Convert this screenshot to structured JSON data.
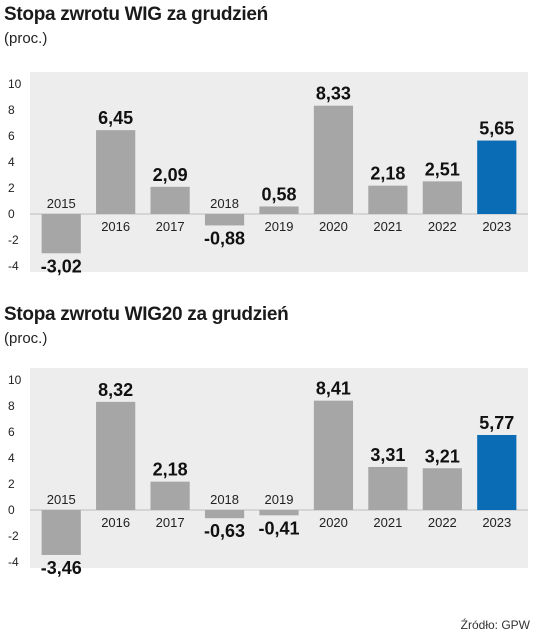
{
  "source": "Źródło: GPW",
  "chart_data": [
    {
      "type": "bar",
      "title": "Stopa zwrotu WIG za grudzień",
      "subtitle": "(proc.)",
      "categories": [
        "2015",
        "2016",
        "2017",
        "2018",
        "2019",
        "2020",
        "2021",
        "2022",
        "2023"
      ],
      "values": [
        -3.02,
        6.45,
        2.09,
        -0.88,
        0.58,
        8.33,
        2.18,
        2.51,
        5.65
      ],
      "value_labels": [
        "-3,02",
        "6,45",
        "2,09",
        "-0,88",
        "0,58",
        "8,33",
        "2,18",
        "2,51",
        "5,65"
      ],
      "ylim": [
        -4,
        10
      ],
      "yticks": [
        10,
        8,
        6,
        4,
        2,
        0,
        -2,
        -4
      ],
      "ytick_labels": [
        "10",
        "8",
        "6",
        "4",
        "2",
        "0",
        "-2",
        "-4"
      ],
      "colors": {
        "default": "#a6a6a6",
        "highlight": "#0a6cb5",
        "background": "#ededed"
      },
      "highlight_index": 8
    },
    {
      "type": "bar",
      "title": "Stopa zwrotu WIG20 za grudzień",
      "subtitle": "(proc.)",
      "categories": [
        "2015",
        "2016",
        "2017",
        "2018",
        "2019",
        "2020",
        "2021",
        "2022",
        "2023"
      ],
      "values": [
        -3.46,
        8.32,
        2.18,
        -0.63,
        -0.41,
        8.41,
        3.31,
        3.21,
        5.77
      ],
      "value_labels": [
        "-3,46",
        "8,32",
        "2,18",
        "-0,63",
        "-0,41",
        "8,41",
        "3,31",
        "3,21",
        "5,77"
      ],
      "ylim": [
        -4,
        10
      ],
      "yticks": [
        10,
        8,
        6,
        4,
        2,
        0,
        -2,
        -4
      ],
      "ytick_labels": [
        "10",
        "8",
        "6",
        "4",
        "2",
        "0",
        "-2",
        "-4"
      ],
      "colors": {
        "default": "#a6a6a6",
        "highlight": "#0a6cb5",
        "background": "#ededed"
      },
      "highlight_index": 8
    }
  ]
}
